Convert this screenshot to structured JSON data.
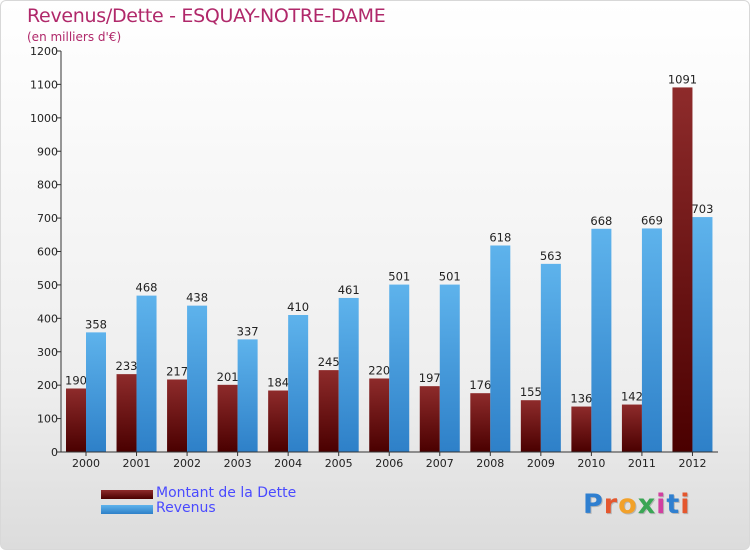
{
  "title": "Revenus/Dette - ESQUAY-NOTRE-DAME",
  "subtitle": "(en milliers d'€)",
  "legend": {
    "debt_label": "Montant de la Dette",
    "revenue_label": "Revenus"
  },
  "brand": "Proxiti",
  "colors": {
    "title": "#b0286a",
    "debt_bar_top": "#8e2b2b",
    "debt_bar_bottom": "#4a0000",
    "revenue_bar_top": "#5eb3ec",
    "revenue_bar_bottom": "#2e80c8",
    "legend_text": "#4a4aff"
  },
  "chart_data": {
    "type": "bar",
    "title": "Revenus/Dette - ESQUAY-NOTRE-DAME",
    "subtitle": "(en milliers d'€)",
    "xlabel": "",
    "ylabel": "",
    "ylim": [
      0,
      1200
    ],
    "yticks": [
      0,
      100,
      200,
      300,
      400,
      500,
      600,
      700,
      800,
      900,
      1000,
      1100,
      1200
    ],
    "grid": false,
    "legend_position": "bottom-left",
    "categories": [
      "2000",
      "2001",
      "2002",
      "2003",
      "2004",
      "2005",
      "2006",
      "2007",
      "2008",
      "2009",
      "2010",
      "2011",
      "2012"
    ],
    "series": [
      {
        "name": "Montant de la Dette",
        "values": [
          190,
          233,
          217,
          201,
          184,
          245,
          220,
          197,
          176,
          155,
          136,
          142,
          1091
        ]
      },
      {
        "name": "Revenus",
        "values": [
          358,
          468,
          438,
          337,
          410,
          461,
          501,
          501,
          618,
          563,
          668,
          669,
          703
        ]
      }
    ]
  }
}
